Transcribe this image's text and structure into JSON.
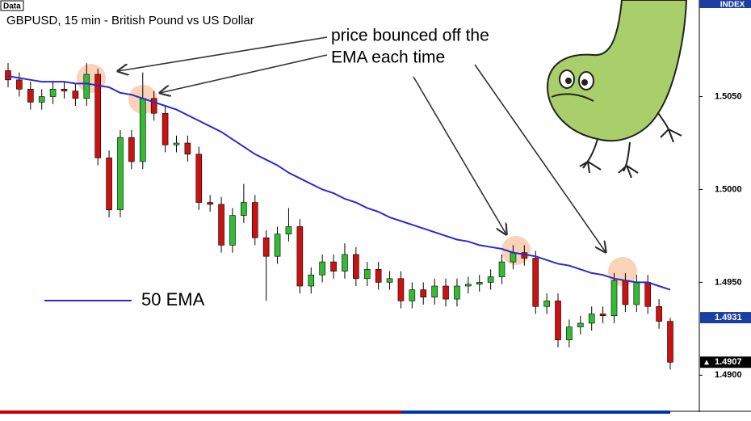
{
  "chart_data": {
    "type": "candlestick",
    "title": "GBPUSD, 15 min - British Pound vs US Dollar",
    "corner_label": "Data",
    "axis_label": "INDEX",
    "annotations": [
      "price bounced off the",
      "EMA each time"
    ],
    "ylim": [
      1.4881,
      1.5102
    ],
    "yticks": [
      {
        "value": 1.49,
        "label": "1.4900"
      },
      {
        "value": 1.495,
        "label": "1.4950"
      },
      {
        "value": 1.5,
        "label": "1.5000"
      },
      {
        "value": 1.505,
        "label": "1.5050"
      }
    ],
    "up_color": "#33bb33",
    "down_color": "#cc1111",
    "open": [
      1.5064,
      1.5059,
      1.5054,
      1.5047,
      1.505,
      1.5054,
      1.5053,
      1.5049,
      1.5062,
      1.5017,
      1.4989,
      1.5028,
      1.5015,
      1.5049,
      1.5041,
      1.5024,
      1.5025,
      1.5019,
      1.4993,
      1.4992,
      1.497,
      1.4986,
      1.4993,
      1.4974,
      1.4964,
      1.4976,
      1.498,
      1.4948,
      1.4954,
      1.4961,
      1.4956,
      1.4965,
      1.4952,
      1.4957,
      1.495,
      1.4952,
      1.494,
      1.4946,
      1.4942,
      1.4948,
      1.4941,
      1.4948,
      1.4949,
      1.495,
      1.4953,
      1.4961,
      1.4966,
      1.4963,
      1.4937,
      1.494,
      1.4919,
      1.4926,
      1.4928,
      1.4933,
      1.4932,
      1.4951,
      1.4938,
      1.495,
      1.4937,
      1.4929
    ],
    "high": [
      1.5068,
      1.5063,
      1.5058,
      1.5054,
      1.5058,
      1.5058,
      1.5057,
      1.5068,
      1.5065,
      1.5021,
      1.5032,
      1.5032,
      1.5063,
      1.5053,
      1.5045,
      1.5029,
      1.5029,
      1.5023,
      1.4997,
      1.4996,
      1.499,
      1.5003,
      1.4997,
      1.4978,
      1.498,
      1.499,
      1.4984,
      1.4958,
      1.4965,
      1.4965,
      1.4971,
      1.4969,
      1.4961,
      1.4961,
      1.4956,
      1.4956,
      1.495,
      1.495,
      1.4952,
      1.4952,
      1.4952,
      1.4953,
      1.4954,
      1.4957,
      1.4965,
      1.497,
      1.497,
      1.4967,
      1.4944,
      1.4944,
      1.493,
      1.4932,
      1.4937,
      1.4937,
      1.4955,
      1.4955,
      1.4954,
      1.4954,
      1.4941,
      1.4931
    ],
    "low": [
      1.5055,
      1.505,
      1.5043,
      1.5043,
      1.5046,
      1.5049,
      1.5045,
      1.5045,
      1.5013,
      1.4985,
      1.4985,
      1.5011,
      1.5011,
      1.5037,
      1.502,
      1.502,
      1.5015,
      1.4989,
      1.4988,
      1.4966,
      1.4966,
      1.4982,
      1.497,
      1.494,
      1.496,
      1.4972,
      1.4944,
      1.4944,
      1.495,
      1.4952,
      1.4952,
      1.4948,
      1.4948,
      1.4946,
      1.4946,
      1.4936,
      1.4936,
      1.4938,
      1.4938,
      1.4937,
      1.4937,
      1.4944,
      1.4945,
      1.4946,
      1.4949,
      1.4957,
      1.4959,
      1.4933,
      1.4933,
      1.4915,
      1.4915,
      1.4922,
      1.4924,
      1.4928,
      1.4928,
      1.4934,
      1.4934,
      1.4933,
      1.4925,
      1.4903
    ],
    "close": [
      1.5059,
      1.5054,
      1.5047,
      1.505,
      1.5054,
      1.5053,
      1.5049,
      1.5062,
      1.5017,
      1.4989,
      1.5028,
      1.5015,
      1.5049,
      1.5041,
      1.5024,
      1.5025,
      1.5019,
      1.4993,
      1.4992,
      1.497,
      1.4986,
      1.4993,
      1.4974,
      1.4964,
      1.4976,
      1.498,
      1.4948,
      1.4954,
      1.4961,
      1.4956,
      1.4965,
      1.4952,
      1.4957,
      1.495,
      1.4952,
      1.494,
      1.4946,
      1.4942,
      1.4948,
      1.4941,
      1.4948,
      1.4949,
      1.495,
      1.4953,
      1.4961,
      1.4966,
      1.4963,
      1.4937,
      1.494,
      1.4919,
      1.4926,
      1.4928,
      1.4933,
      1.4932,
      1.4951,
      1.4938,
      1.495,
      1.4937,
      1.4929,
      1.4907
    ],
    "series": [
      {
        "name": "50 EMA",
        "color": "#2a2ad0",
        "values": [
          1.5061,
          1.506,
          1.5059,
          1.5058,
          1.5058,
          1.5058,
          1.5057,
          1.5057,
          1.5056,
          1.5055,
          1.5052,
          1.5051,
          1.5049,
          1.5047,
          1.5045,
          1.5043,
          1.504,
          1.5037,
          1.5034,
          1.5031,
          1.5027,
          1.5023,
          1.5019,
          1.5016,
          1.5013,
          1.5009,
          1.5006,
          1.5003,
          1.5,
          1.4998,
          1.4995,
          1.4993,
          1.499,
          1.4988,
          1.4985,
          1.4983,
          1.4981,
          1.4979,
          1.4977,
          1.4975,
          1.4973,
          1.4972,
          1.497,
          1.4969,
          1.4968,
          1.4966,
          1.4965,
          1.4964,
          1.4962,
          1.496,
          1.4959,
          1.4957,
          1.4955,
          1.4954,
          1.4952,
          1.4951,
          1.495,
          1.495,
          1.4948,
          1.4946
        ]
      }
    ],
    "price_tags": [
      {
        "value": 1.4931,
        "label": "1.4931",
        "color": "#1a3fa0"
      },
      {
        "value": 1.4907,
        "label": "1.4907",
        "color": "#000000"
      }
    ]
  }
}
